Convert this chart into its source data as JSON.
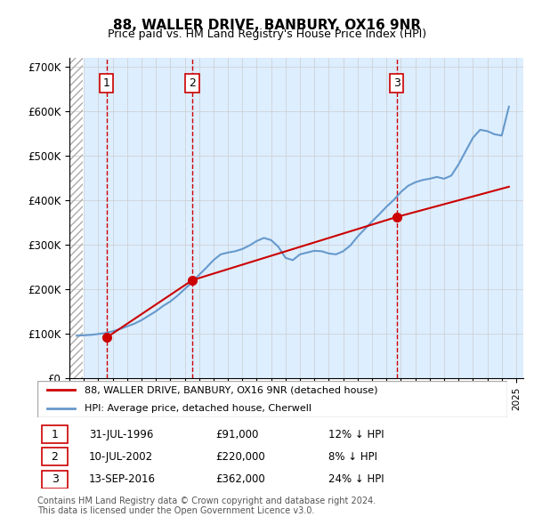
{
  "title": "88, WALLER DRIVE, BANBURY, OX16 9NR",
  "subtitle": "Price paid vs. HM Land Registry's House Price Index (HPI)",
  "ylabel": "",
  "xlim": [
    1994,
    2025.5
  ],
  "ylim": [
    0,
    720000
  ],
  "yticks": [
    0,
    100000,
    200000,
    300000,
    400000,
    500000,
    600000,
    700000
  ],
  "ytick_labels": [
    "£0",
    "£100K",
    "£200K",
    "£300K",
    "£400K",
    "£500K",
    "£600K",
    "£700K"
  ],
  "sales": [
    {
      "date_year": 1996.58,
      "price": 91000,
      "label": "1"
    },
    {
      "date_year": 2002.53,
      "price": 220000,
      "label": "2"
    },
    {
      "date_year": 2016.71,
      "price": 362000,
      "label": "3"
    }
  ],
  "sale_info": [
    {
      "num": "1",
      "date": "31-JUL-1996",
      "price": "£91,000",
      "note": "12% ↓ HPI"
    },
    {
      "num": "2",
      "date": "10-JUL-2002",
      "price": "£220,000",
      "note": "8% ↓ HPI"
    },
    {
      "num": "3",
      "date": "13-SEP-2016",
      "price": "£362,000",
      "note": "24% ↓ HPI"
    }
  ],
  "legend_line1": "88, WALLER DRIVE, BANBURY, OX16 9NR (detached house)",
  "legend_line2": "HPI: Average price, detached house, Cherwell",
  "footer": "Contains HM Land Registry data © Crown copyright and database right 2024.\nThis data is licensed under the Open Government Licence v3.0.",
  "line_color_red": "#cc0000",
  "line_color_blue": "#6699cc",
  "hatch_color": "#cccccc",
  "grid_color": "#cccccc",
  "bg_color": "#ddeeff",
  "hpi_data_years": [
    1994.5,
    1995.0,
    1995.5,
    1996.0,
    1996.5,
    1997.0,
    1997.5,
    1998.0,
    1998.5,
    1999.0,
    1999.5,
    2000.0,
    2000.5,
    2001.0,
    2001.5,
    2002.0,
    2002.5,
    2003.0,
    2003.5,
    2004.0,
    2004.5,
    2005.0,
    2005.5,
    2006.0,
    2006.5,
    2007.0,
    2007.5,
    2008.0,
    2008.5,
    2009.0,
    2009.5,
    2010.0,
    2010.5,
    2011.0,
    2011.5,
    2012.0,
    2012.5,
    2013.0,
    2013.5,
    2014.0,
    2014.5,
    2015.0,
    2015.5,
    2016.0,
    2016.5,
    2017.0,
    2017.5,
    2018.0,
    2018.5,
    2019.0,
    2019.5,
    2020.0,
    2020.5,
    2021.0,
    2021.5,
    2022.0,
    2022.5,
    2023.0,
    2023.5,
    2024.0,
    2024.5
  ],
  "hpi_data_values": [
    95000,
    96000,
    97000,
    99000,
    101000,
    105000,
    110000,
    116000,
    122000,
    130000,
    140000,
    150000,
    162000,
    172000,
    185000,
    200000,
    215000,
    232000,
    248000,
    265000,
    278000,
    282000,
    285000,
    290000,
    298000,
    308000,
    315000,
    310000,
    295000,
    270000,
    265000,
    278000,
    282000,
    286000,
    285000,
    280000,
    278000,
    285000,
    298000,
    318000,
    335000,
    352000,
    368000,
    385000,
    400000,
    418000,
    432000,
    440000,
    445000,
    448000,
    452000,
    448000,
    455000,
    480000,
    510000,
    540000,
    558000,
    555000,
    548000,
    545000,
    610000
  ],
  "price_line_years": [
    1996.58,
    2002.53,
    2016.71,
    2024.5
  ],
  "price_line_values": [
    91000,
    220000,
    362000,
    430000
  ]
}
